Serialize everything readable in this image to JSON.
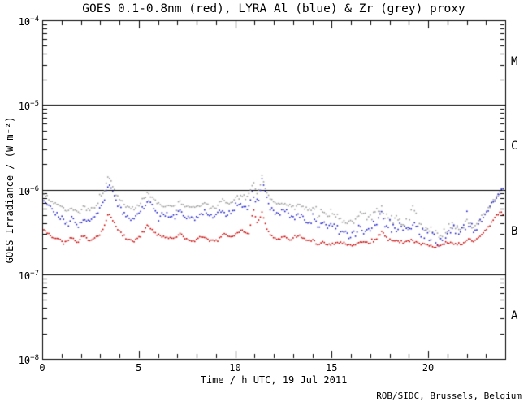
{
  "credit": "ROB/SIDC, Brussels, Belgium",
  "chart_data": {
    "type": "scatter",
    "title": "GOES 0.1-0.8nm (red), LYRA Al (blue) & Zr (grey) proxy",
    "xlabel": "Time / h UTC, 19 Jul 2011",
    "ylabel": "GOES Irradiance / (W m⁻²)",
    "x_range": [
      0,
      24
    ],
    "x_major_ticks": [
      0,
      5,
      10,
      15,
      20
    ],
    "x_minor_step": 1,
    "y_scale": "log",
    "y_range_exp": [
      -8,
      -4
    ],
    "y_tick_exponents": [
      -4,
      -5,
      -6,
      -7,
      -8
    ],
    "hlines": [
      1e-05,
      1e-06,
      1e-07
    ],
    "grid": "off",
    "legend": "in-title",
    "flare_classes": [
      {
        "label": "M",
        "between_exp": [
          -5,
          -4
        ]
      },
      {
        "label": "C",
        "between_exp": [
          -6,
          -5
        ]
      },
      {
        "label": "B",
        "between_exp": [
          -7,
          -6
        ]
      },
      {
        "label": "A",
        "between_exp": [
          -8,
          -7
        ]
      }
    ],
    "series": [
      {
        "name": "GOES 0.1-0.8nm",
        "color": "#cc0000",
        "points": [
          [
            0,
            3.4e-07
          ],
          [
            0.4,
            2.9e-07
          ],
          [
            0.8,
            2.6e-07
          ],
          [
            1.2,
            2.4e-07
          ],
          [
            1.55,
            2.8e-07
          ],
          [
            1.8,
            2.3e-07
          ],
          [
            2.1,
            2.9e-07
          ],
          [
            2.4,
            2.5e-07
          ],
          [
            2.7,
            2.6e-07
          ],
          [
            3.0,
            3e-07
          ],
          [
            3.2,
            3.7e-07
          ],
          [
            3.45,
            5.4e-07
          ],
          [
            3.7,
            4.2e-07
          ],
          [
            4.0,
            3.2e-07
          ],
          [
            4.4,
            2.6e-07
          ],
          [
            4.7,
            2.4e-07
          ],
          [
            5.0,
            2.7e-07
          ],
          [
            5.2,
            3.1e-07
          ],
          [
            5.5,
            3.9e-07
          ],
          [
            5.75,
            3.2e-07
          ],
          [
            6.0,
            2.9e-07
          ],
          [
            6.4,
            2.7e-07
          ],
          [
            6.8,
            2.6e-07
          ],
          [
            7.15,
            3e-07
          ],
          [
            7.5,
            2.6e-07
          ],
          [
            7.9,
            2.5e-07
          ],
          [
            8.3,
            2.8e-07
          ],
          [
            8.7,
            2.5e-07
          ],
          [
            9.1,
            2.6e-07
          ],
          [
            9.4,
            3e-07
          ],
          [
            9.7,
            2.7e-07
          ],
          [
            10.0,
            2.9e-07
          ],
          [
            10.35,
            3.3e-07
          ],
          [
            10.7,
            3e-07
          ],
          [
            10.95,
            6e-07
          ],
          [
            11.15,
            4e-07
          ],
          [
            11.4,
            5.5e-07
          ],
          [
            11.6,
            3.6e-07
          ],
          [
            11.9,
            2.8e-07
          ],
          [
            12.2,
            2.5e-07
          ],
          [
            12.55,
            2.9e-07
          ],
          [
            12.9,
            2.5e-07
          ],
          [
            13.3,
            2.9e-07
          ],
          [
            13.7,
            2.6e-07
          ],
          [
            14.1,
            2.5e-07
          ],
          [
            14.3,
            2.2e-07
          ],
          [
            14.5,
            2.4e-07
          ],
          [
            14.9,
            2.2e-07
          ],
          [
            15.3,
            2.4e-07
          ],
          [
            15.7,
            2.3e-07
          ],
          [
            16.1,
            2.2e-07
          ],
          [
            16.5,
            2.5e-07
          ],
          [
            16.9,
            2.3e-07
          ],
          [
            17.3,
            2.6e-07
          ],
          [
            17.6,
            3.2e-07
          ],
          [
            17.9,
            2.6e-07
          ],
          [
            18.3,
            2.5e-07
          ],
          [
            18.7,
            2.4e-07
          ],
          [
            19.1,
            2.5e-07
          ],
          [
            19.5,
            2.3e-07
          ],
          [
            19.9,
            2.2e-07
          ],
          [
            20.3,
            2.1e-07
          ],
          [
            20.7,
            2.2e-07
          ],
          [
            21.1,
            2.5e-07
          ],
          [
            21.4,
            2.3e-07
          ],
          [
            21.8,
            2.3e-07
          ],
          [
            22.1,
            2.6e-07
          ],
          [
            22.4,
            2.4e-07
          ],
          [
            22.8,
            2.9e-07
          ],
          [
            23.2,
            3.8e-07
          ],
          [
            23.5,
            4.8e-07
          ],
          [
            23.75,
            5.4e-07
          ],
          [
            23.95,
            4.8e-07
          ]
        ]
      },
      {
        "name": "LYRA Al proxy",
        "color": "#2222cc",
        "points": [
          [
            0,
            8.2e-07
          ],
          [
            0.3,
            6.6e-07
          ],
          [
            0.7,
            5.2e-07
          ],
          [
            1.0,
            4.6e-07
          ],
          [
            1.3,
            3.8e-07
          ],
          [
            1.55,
            4.6e-07
          ],
          [
            1.8,
            3.7e-07
          ],
          [
            2.0,
            4e-07
          ],
          [
            2.15,
            4.8e-07
          ],
          [
            2.4,
            4.3e-07
          ],
          [
            2.7,
            4.7e-07
          ],
          [
            3.0,
            6e-07
          ],
          [
            3.2,
            7.6e-07
          ],
          [
            3.45,
            1.2e-06
          ],
          [
            3.6,
            1e-06
          ],
          [
            3.8,
            7.2e-07
          ],
          [
            4.2,
            5.3e-07
          ],
          [
            4.6,
            4.5e-07
          ],
          [
            4.9,
            4.9e-07
          ],
          [
            5.2,
            5.9e-07
          ],
          [
            5.5,
            7.3e-07
          ],
          [
            5.75,
            6.1e-07
          ],
          [
            6.0,
            5.3e-07
          ],
          [
            6.3,
            4.9e-07
          ],
          [
            6.6,
            5.1e-07
          ],
          [
            6.9,
            4.8e-07
          ],
          [
            7.15,
            5.5e-07
          ],
          [
            7.3,
            4.9e-07
          ],
          [
            7.6,
            4.7e-07
          ],
          [
            7.9,
            4.5e-07
          ],
          [
            8.15,
            5.1e-07
          ],
          [
            8.4,
            5.4e-07
          ],
          [
            8.7,
            4.7e-07
          ],
          [
            9.0,
            4.8e-07
          ],
          [
            9.25,
            5.7e-07
          ],
          [
            9.5,
            5.1e-07
          ],
          [
            9.8,
            5.5e-07
          ],
          [
            10.1,
            6.3e-07
          ],
          [
            10.4,
            6.6e-07
          ],
          [
            10.65,
            6.1e-07
          ],
          [
            10.9,
            9.2e-07
          ],
          [
            11.05,
            7.6e-07
          ],
          [
            11.2,
            7.2e-07
          ],
          [
            11.4,
            1.35e-06
          ],
          [
            11.55,
            9.2e-07
          ],
          [
            11.8,
            6.2e-07
          ],
          [
            12.05,
            5.5e-07
          ],
          [
            12.3,
            5.2e-07
          ],
          [
            12.55,
            5.8e-07
          ],
          [
            12.8,
            5e-07
          ],
          [
            13.1,
            4.6e-07
          ],
          [
            13.35,
            5e-07
          ],
          [
            13.6,
            4.3e-07
          ],
          [
            13.9,
            4.1e-07
          ],
          [
            14.2,
            4.4e-07
          ],
          [
            14.3,
            3.3e-07
          ],
          [
            14.45,
            4.2e-07
          ],
          [
            14.8,
            3.7e-07
          ],
          [
            15.1,
            3.9e-07
          ],
          [
            15.4,
            3.4e-07
          ],
          [
            15.7,
            3.1e-07
          ],
          [
            16.0,
            3e-07
          ],
          [
            16.3,
            3.1e-07
          ],
          [
            16.55,
            3.6e-07
          ],
          [
            16.8,
            3.3e-07
          ],
          [
            17.1,
            3.6e-07
          ],
          [
            17.35,
            4.2e-07
          ],
          [
            17.6,
            5.6e-07
          ],
          [
            17.8,
            3.8e-07
          ],
          [
            18.1,
            3.5e-07
          ],
          [
            18.4,
            3.6e-07
          ],
          [
            18.7,
            3.4e-07
          ],
          [
            19.0,
            3.3e-07
          ],
          [
            19.2,
            3.9e-07
          ],
          [
            19.5,
            3.2e-07
          ],
          [
            19.8,
            3e-07
          ],
          [
            20.1,
            2.8e-07
          ],
          [
            20.35,
            2.6e-07
          ],
          [
            20.6,
            2.4e-07
          ],
          [
            20.9,
            2.7e-07
          ],
          [
            21.2,
            3.7e-07
          ],
          [
            21.5,
            3.2e-07
          ],
          [
            21.8,
            3.4e-07
          ],
          [
            22.0,
            4.2e-07
          ],
          [
            22.3,
            3.5e-07
          ],
          [
            22.55,
            3.7e-07
          ],
          [
            22.8,
            4.5e-07
          ],
          [
            23.1,
            5.6e-07
          ],
          [
            23.4,
            7.2e-07
          ],
          [
            23.7,
            9.3e-07
          ],
          [
            23.95,
            1.05e-06
          ]
        ]
      },
      {
        "name": "LYRA Zr proxy",
        "color": "#9e9e9e",
        "points": [
          [
            0,
            9.5e-07
          ],
          [
            0.3,
            8e-07
          ],
          [
            0.7,
            6.7e-07
          ],
          [
            1.0,
            6.1e-07
          ],
          [
            1.3,
            5.4e-07
          ],
          [
            1.55,
            6e-07
          ],
          [
            1.8,
            5.3e-07
          ],
          [
            2.0,
            5.6e-07
          ],
          [
            2.15,
            6.2e-07
          ],
          [
            2.4,
            5.8e-07
          ],
          [
            2.7,
            6.2e-07
          ],
          [
            3.0,
            7.8e-07
          ],
          [
            3.2,
            9.6e-07
          ],
          [
            3.45,
            1.45e-06
          ],
          [
            3.6,
            1.2e-06
          ],
          [
            3.8,
            9e-07
          ],
          [
            4.2,
            6.8e-07
          ],
          [
            4.6,
            5.9e-07
          ],
          [
            4.9,
            6.3e-07
          ],
          [
            5.2,
            7.5e-07
          ],
          [
            5.5,
            9.3e-07
          ],
          [
            5.75,
            7.9e-07
          ],
          [
            6.0,
            6.9e-07
          ],
          [
            6.3,
            6.4e-07
          ],
          [
            6.6,
            6.6e-07
          ],
          [
            6.9,
            6.3e-07
          ],
          [
            7.15,
            7.1e-07
          ],
          [
            7.3,
            6.4e-07
          ],
          [
            7.6,
            6.2e-07
          ],
          [
            7.9,
            5.9e-07
          ],
          [
            8.15,
            6.5e-07
          ],
          [
            8.4,
            6.9e-07
          ],
          [
            8.7,
            6.1e-07
          ],
          [
            9.0,
            6.2e-07
          ],
          [
            9.25,
            7.3e-07
          ],
          [
            9.35,
            8e-07
          ],
          [
            9.5,
            6.7e-07
          ],
          [
            9.8,
            7.1e-07
          ],
          [
            10.1,
            8e-07
          ],
          [
            10.4,
            8.4e-07
          ],
          [
            10.65,
            7.8e-07
          ],
          [
            10.9,
            1.15e-06
          ],
          [
            11.05,
            9.6e-07
          ],
          [
            11.2,
            9.1e-07
          ],
          [
            11.4,
            1.48e-06
          ],
          [
            11.55,
            1.1e-06
          ],
          [
            11.8,
            7.8e-07
          ],
          [
            12.05,
            6.9e-07
          ],
          [
            12.3,
            6.5e-07
          ],
          [
            12.55,
            7.1e-07
          ],
          [
            12.8,
            6.4e-07
          ],
          [
            13.1,
            6.1e-07
          ],
          [
            13.35,
            6.6e-07
          ],
          [
            13.6,
            5.9e-07
          ],
          [
            13.9,
            5.7e-07
          ],
          [
            14.2,
            6e-07
          ],
          [
            14.3,
            4.6e-07
          ],
          [
            14.45,
            5.8e-07
          ],
          [
            14.8,
            5e-07
          ],
          [
            15.1,
            5.2e-07
          ],
          [
            15.4,
            4.7e-07
          ],
          [
            15.7,
            4.4e-07
          ],
          [
            16.0,
            4.2e-07
          ],
          [
            16.3,
            4.3e-07
          ],
          [
            16.55,
            5.9e-07
          ],
          [
            16.8,
            4.6e-07
          ],
          [
            17.1,
            4.8e-07
          ],
          [
            17.35,
            5.3e-07
          ],
          [
            17.6,
            5.9e-07
          ],
          [
            17.8,
            4.9e-07
          ],
          [
            18.1,
            4.4e-07
          ],
          [
            18.4,
            4.6e-07
          ],
          [
            18.7,
            4.2e-07
          ],
          [
            19.0,
            4e-07
          ],
          [
            19.2,
            6.4e-07
          ],
          [
            19.5,
            3.9e-07
          ],
          [
            19.8,
            3.6e-07
          ],
          [
            20.1,
            3.3e-07
          ],
          [
            20.35,
            3.1e-07
          ],
          [
            20.6,
            2.9e-07
          ],
          [
            20.9,
            3.2e-07
          ],
          [
            21.2,
            3.9e-07
          ],
          [
            21.5,
            3.5e-07
          ],
          [
            21.8,
            3.7e-07
          ],
          [
            22.0,
            4.6e-07
          ],
          [
            22.3,
            3.8e-07
          ],
          [
            22.55,
            3.9e-07
          ],
          [
            22.8,
            4.8e-07
          ],
          [
            23.1,
            5.8e-07
          ],
          [
            23.4,
            7.3e-07
          ],
          [
            23.7,
            9.4e-07
          ],
          [
            23.95,
            1.05e-06
          ]
        ]
      }
    ]
  }
}
